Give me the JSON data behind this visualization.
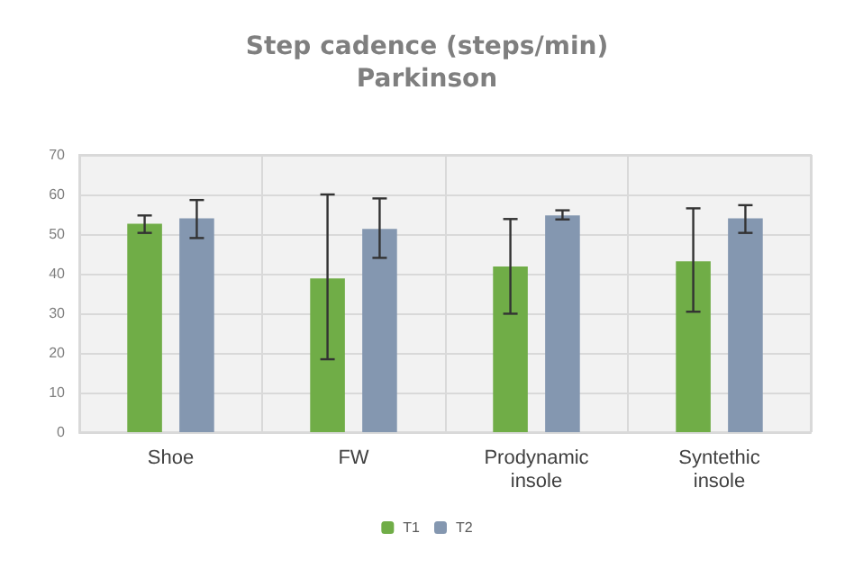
{
  "chart_data": {
    "type": "bar",
    "title": "Step cadence (steps/min)",
    "subtitle": "Parkinson",
    "categories": [
      "Shoe",
      "FW",
      "Prodynamic\ninsole",
      "Syntethic\ninsole"
    ],
    "series": [
      {
        "name": "T1",
        "color": "#70ad47",
        "values": [
          52.6,
          38.8,
          41.8,
          43.1
        ],
        "errors": [
          [
            50.3,
            54.7
          ],
          [
            18.4,
            60
          ],
          [
            29.9,
            53.8
          ],
          [
            30.4,
            56.5
          ]
        ]
      },
      {
        "name": "T2",
        "color": "#8497b0",
        "values": [
          54,
          51.3,
          54.7,
          54
        ],
        "errors": [
          [
            49,
            58.6
          ],
          [
            44,
            59
          ],
          [
            53.7,
            56
          ],
          [
            50.3,
            57.3
          ]
        ]
      }
    ],
    "ylim": [
      0,
      70
    ],
    "yticks": [
      0,
      10,
      20,
      30,
      40,
      50,
      60,
      70
    ],
    "grid": true,
    "legend": "bottom"
  }
}
